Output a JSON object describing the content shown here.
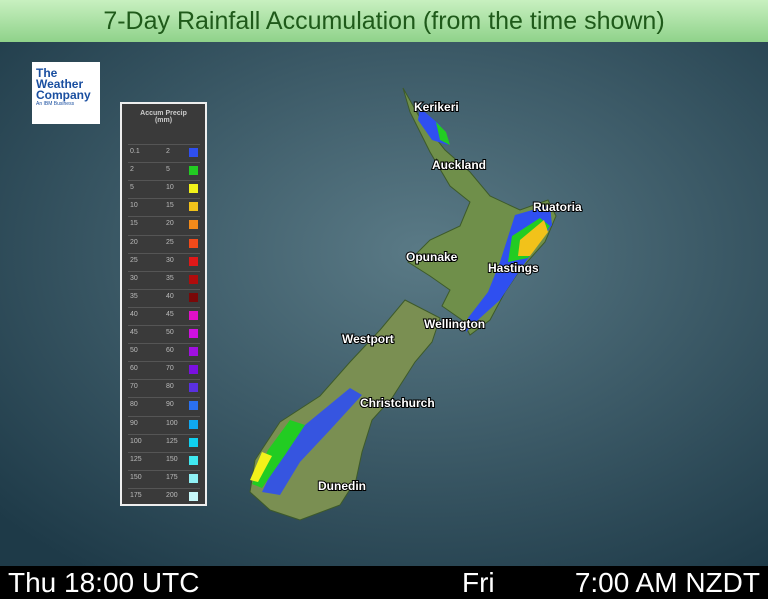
{
  "header": {
    "title": "7-Day Rainfall Accumulation (from the time shown)"
  },
  "logo": {
    "line1": "The",
    "line2": "Weather",
    "line3": "Company",
    "tagline": "An IBM Business"
  },
  "legend": {
    "title": "Accum Precip",
    "unit": "(mm)",
    "rows": [
      {
        "low": 0.1,
        "high": 2,
        "color": "#2f4ff0"
      },
      {
        "low": 2,
        "high": 5,
        "color": "#22cc22"
      },
      {
        "low": 5,
        "high": 10,
        "color": "#f2f21a"
      },
      {
        "low": 10,
        "high": 15,
        "color": "#f2c21a"
      },
      {
        "low": 15,
        "high": 20,
        "color": "#f28a1a"
      },
      {
        "low": 20,
        "high": 25,
        "color": "#f24a1a"
      },
      {
        "low": 25,
        "high": 30,
        "color": "#e01818"
      },
      {
        "low": 30,
        "high": 35,
        "color": "#b00c0c"
      },
      {
        "low": 35,
        "high": 40,
        "color": "#7a0808"
      },
      {
        "low": 40,
        "high": 45,
        "color": "#e010c8"
      },
      {
        "low": 45,
        "high": 50,
        "color": "#d010e0"
      },
      {
        "low": 50,
        "high": 60,
        "color": "#a010e0"
      },
      {
        "low": 60,
        "high": 70,
        "color": "#7a10e0"
      },
      {
        "low": 70,
        "high": 80,
        "color": "#5a30e0"
      },
      {
        "low": 80,
        "high": 90,
        "color": "#2a70f0"
      },
      {
        "low": 90,
        "high": 100,
        "color": "#10a8f0"
      },
      {
        "low": 100,
        "high": 125,
        "color": "#10d0f0"
      },
      {
        "low": 125,
        "high": 150,
        "color": "#40e8f0"
      },
      {
        "low": 150,
        "high": 175,
        "color": "#90f0f4"
      },
      {
        "low": 175,
        "high": 200,
        "color": "#c8f8fa"
      }
    ]
  },
  "cities": [
    "Kerikeri",
    "Auckland",
    "Ruatoria",
    "Opunake",
    "Hastings",
    "Wellington",
    "Westport",
    "Christchurch",
    "Dunedin"
  ],
  "footer": {
    "left": "Thu 18:00 UTC",
    "day": "Fri",
    "time": "7:00 AM NZDT"
  }
}
